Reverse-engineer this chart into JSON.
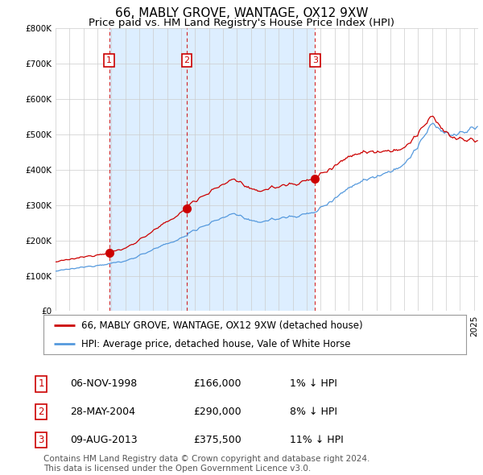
{
  "title": "66, MABLY GROVE, WANTAGE, OX12 9XW",
  "subtitle": "Price paid vs. HM Land Registry's House Price Index (HPI)",
  "ylim": [
    0,
    800000
  ],
  "yticks": [
    0,
    100000,
    200000,
    300000,
    400000,
    500000,
    600000,
    700000,
    800000
  ],
  "xlim_start": 1995.0,
  "xlim_end": 2025.3,
  "hpi_color": "#5599dd",
  "price_color": "#cc0000",
  "shade_color": "#ddeeff",
  "background_color": "#ffffff",
  "grid_color": "#cccccc",
  "sales": [
    {
      "date_num": 1998.84,
      "price": 166000,
      "label": "1"
    },
    {
      "date_num": 2004.41,
      "price": 290000,
      "label": "2"
    },
    {
      "date_num": 2013.6,
      "price": 375500,
      "label": "3"
    }
  ],
  "legend_entries": [
    "66, MABLY GROVE, WANTAGE, OX12 9XW (detached house)",
    "HPI: Average price, detached house, Vale of White Horse"
  ],
  "table_rows": [
    {
      "num": "1",
      "date": "06-NOV-1998",
      "price": "£166,000",
      "pct": "1% ↓ HPI"
    },
    {
      "num": "2",
      "date": "28-MAY-2004",
      "price": "£290,000",
      "pct": "8% ↓ HPI"
    },
    {
      "num": "3",
      "date": "09-AUG-2013",
      "price": "£375,500",
      "pct": "11% ↓ HPI"
    }
  ],
  "footnote": "Contains HM Land Registry data © Crown copyright and database right 2024.\nThis data is licensed under the Open Government Licence v3.0.",
  "title_fontsize": 11,
  "subtitle_fontsize": 9.5,
  "tick_fontsize": 7.5,
  "legend_fontsize": 8.5,
  "table_fontsize": 9,
  "footnote_fontsize": 7.5
}
